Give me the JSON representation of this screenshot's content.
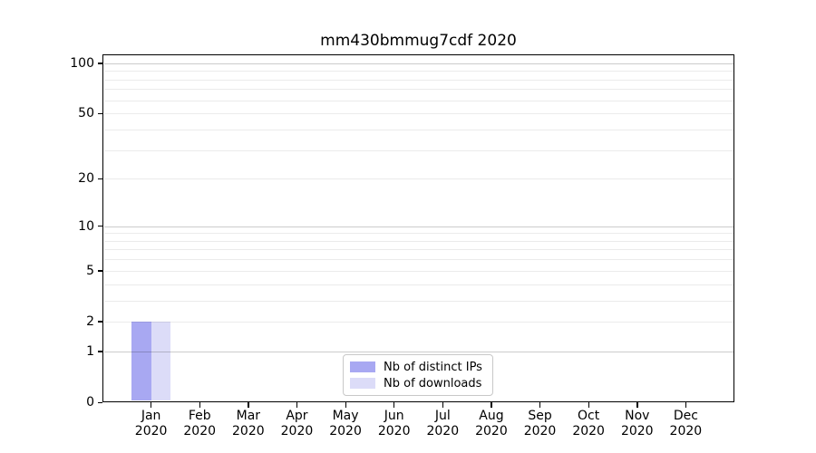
{
  "chart_data": {
    "type": "bar",
    "title": "mm430bmmug7cdf 2020",
    "x_categories": [
      {
        "month": "Jan",
        "year": "2020"
      },
      {
        "month": "Feb",
        "year": "2020"
      },
      {
        "month": "Mar",
        "year": "2020"
      },
      {
        "month": "Apr",
        "year": "2020"
      },
      {
        "month": "May",
        "year": "2020"
      },
      {
        "month": "Jun",
        "year": "2020"
      },
      {
        "month": "Jul",
        "year": "2020"
      },
      {
        "month": "Aug",
        "year": "2020"
      },
      {
        "month": "Sep",
        "year": "2020"
      },
      {
        "month": "Oct",
        "year": "2020"
      },
      {
        "month": "Nov",
        "year": "2020"
      },
      {
        "month": "Dec",
        "year": "2020"
      }
    ],
    "series": [
      {
        "name": "Nb of distinct IPs",
        "color": "#a8a8f2",
        "values": [
          2,
          0,
          0,
          0,
          0,
          0,
          0,
          0,
          0,
          0,
          0,
          0
        ]
      },
      {
        "name": "Nb of downloads",
        "color": "#dcdcf8",
        "values": [
          2,
          0,
          0,
          0,
          0,
          0,
          0,
          0,
          0,
          0,
          0,
          0
        ]
      }
    ],
    "y_axis": {
      "scale": "log1p",
      "tick_values": [
        0,
        1,
        2,
        5,
        10,
        20,
        50,
        100
      ],
      "major_gridlines": [
        1,
        10,
        100
      ],
      "minor_gridlines": [
        2,
        3,
        4,
        5,
        6,
        7,
        8,
        9,
        20,
        30,
        40,
        50,
        60,
        70,
        80,
        90
      ],
      "ylim": [
        0,
        113
      ]
    },
    "legend": {
      "position": "lower center",
      "entries": [
        "Nb of distinct IPs",
        "Nb of downloads"
      ]
    },
    "grid": true
  }
}
